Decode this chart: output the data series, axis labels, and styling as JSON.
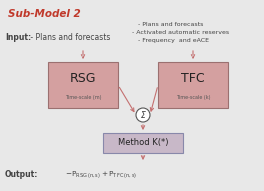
{
  "title": "Sub-Model 2",
  "title_color": "#c0392b",
  "bg_color": "#e8e8e8",
  "box_fill": "#d4a0a0",
  "box_edge": "#9b7070",
  "method_fill": "#c8b8c8",
  "method_edge": "#8888aa",
  "box_rsg_label": "RSG",
  "box_rsg_sublabel": "Time-scale (m)",
  "box_tfc_label": "TFC",
  "box_tfc_sublabel": "Time-scale (k)",
  "method_label": "Method K(*)",
  "sum_symbol": "Σ",
  "input_left_bold": "Input:",
  "input_left_rest": " - Plans and forecasts",
  "input_right_lines": [
    "- Plans and forecasts",
    "- Activated automatic reserves",
    "- Frequency  and eACE"
  ],
  "output_bold": "Output:",
  "output_formula": "- P",
  "arrow_color": "#c47070",
  "circle_color": "#ffffff",
  "circle_edge": "#555555",
  "text_color": "#444444"
}
